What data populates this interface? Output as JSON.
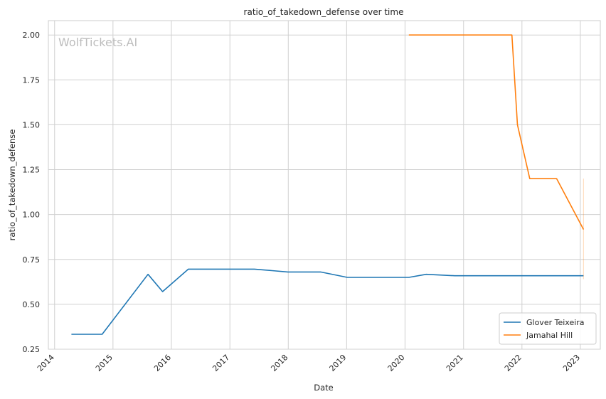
{
  "chart_data": {
    "type": "line",
    "title": "ratio_of_takedown_defense over time",
    "xlabel": "Date",
    "ylabel": "ratio_of_takedown_defense",
    "watermark": "WolfTickets.AI",
    "xlim": [
      "2013-11-23",
      "2023-05-06"
    ],
    "ylim": [
      0.25,
      2.08
    ],
    "x_ticks": [
      "2014",
      "2015",
      "2016",
      "2017",
      "2018",
      "2019",
      "2020",
      "2021",
      "2022",
      "2023"
    ],
    "y_ticks": [
      "0.25",
      "0.50",
      "0.75",
      "1.00",
      "1.25",
      "1.50",
      "1.75",
      "2.00"
    ],
    "grid": true,
    "legend_position": "lower-right",
    "series": [
      {
        "name": "Glover Teixeira",
        "color": "#1f77b4",
        "points": [
          [
            "2014-04-16",
            0.333
          ],
          [
            "2014-10-25",
            0.333
          ],
          [
            "2015-08-08",
            0.667
          ],
          [
            "2015-11-07",
            0.571
          ],
          [
            "2016-04-16",
            0.696
          ],
          [
            "2017-06-03",
            0.696
          ],
          [
            "2017-12-30",
            0.68
          ],
          [
            "2018-07-22",
            0.68
          ],
          [
            "2019-01-05",
            0.65
          ],
          [
            "2020-01-25",
            0.65
          ],
          [
            "2020-05-13",
            0.667
          ],
          [
            "2020-11-07",
            0.659
          ],
          [
            "2021-10-30",
            0.659
          ],
          [
            "2023-01-21",
            0.659
          ]
        ]
      },
      {
        "name": "Jamahal Hill",
        "color": "#ff7f0e",
        "points": [
          [
            "2020-01-25",
            2.0
          ],
          [
            "2021-10-30",
            2.0
          ],
          [
            "2021-12-04",
            1.5
          ],
          [
            "2022-02-19",
            1.2
          ],
          [
            "2022-08-06",
            1.2
          ],
          [
            "2023-01-21",
            0.917
          ]
        ],
        "band": {
          "x": "2023-01-21",
          "low": 0.64,
          "high": 1.2
        }
      }
    ]
  }
}
